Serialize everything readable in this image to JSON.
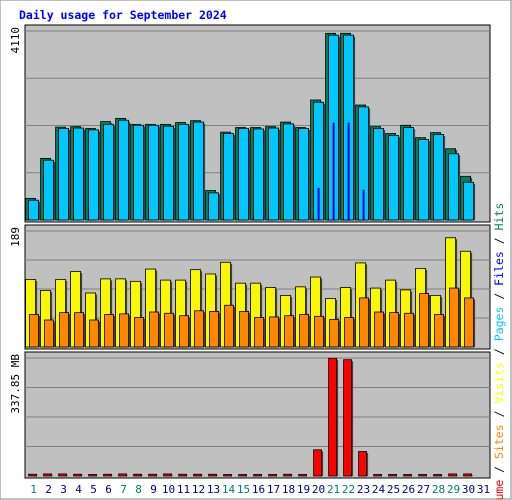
{
  "chart_data": {
    "type": "bar",
    "title": "Daily usage for September 2024",
    "x": [
      "1",
      "2",
      "3",
      "4",
      "5",
      "6",
      "7",
      "8",
      "9",
      "10",
      "11",
      "12",
      "13",
      "14",
      "15",
      "16",
      "17",
      "18",
      "19",
      "20",
      "21",
      "22",
      "23",
      "24",
      "25",
      "26",
      "27",
      "28",
      "29",
      "30",
      "31"
    ],
    "weekend_days": [
      "1",
      "7",
      "8",
      "14",
      "15",
      "21",
      "22",
      "28",
      "29"
    ],
    "panels": [
      {
        "name": "hits-pages",
        "max_label": "4110",
        "ymax": 4110,
        "series": [
          {
            "name": "Hits",
            "color": "#00805c",
            "values": [
              470,
              1340,
              2020,
              2030,
              1990,
              2140,
              2210,
              2080,
              2080,
              2080,
              2120,
              2160,
              640,
              1910,
              2010,
              2010,
              2030,
              2130,
              2010,
              2610,
              4060,
              4060,
              2500,
              2030,
              1880,
              2060,
              1790,
              1900,
              1550,
              950,
              null
            ]
          },
          {
            "name": "Pages",
            "color": "#00c8ff",
            "values": [
              430,
              1300,
              1990,
              2000,
              1960,
              2080,
              2170,
              2060,
              2060,
              2040,
              2080,
              2130,
              590,
              1880,
              1990,
              1980,
              2000,
              2090,
              1990,
              2560,
              4020,
              4020,
              2460,
              1990,
              1840,
              2010,
              1750,
              1860,
              1440,
              820,
              null
            ]
          },
          {
            "name": "Files",
            "color": "#0000e0",
            "values": [
              0,
              0,
              0,
              0,
              0,
              0,
              0,
              0,
              0,
              0,
              0,
              0,
              0,
              0,
              0,
              0,
              0,
              0,
              0,
              700,
              2120,
              2120,
              660,
              0,
              0,
              0,
              0,
              0,
              0,
              0,
              null
            ]
          }
        ]
      },
      {
        "name": "visits-sites",
        "max_label": "189",
        "ymax": 189,
        "series": [
          {
            "name": "Visits",
            "color": "#f8f800",
            "values": [
              110,
              92,
              110,
              123,
              88,
              111,
              111,
              107,
              127,
              109,
              109,
              126,
              119,
              138,
              104,
              104,
              97,
              84,
              98,
              114,
              79,
              97,
              137,
              96,
              109,
              93,
              128,
              84,
              178,
              156,
              null
            ]
          },
          {
            "name": "Sites",
            "color": "#ff8800",
            "values": [
              53,
              44,
              56,
              56,
              44,
              53,
              54,
              48,
              57,
              55,
              51,
              59,
              58,
              68,
              58,
              48,
              49,
              51,
              53,
              50,
              45,
              48,
              80,
              57,
              56,
              55,
              87,
              53,
              96,
              80,
              null
            ]
          }
        ]
      },
      {
        "name": "volume",
        "max_label": "337.85 MB",
        "ymax": 337.85,
        "series": [
          {
            "name": "Volume",
            "color": "#ff0000",
            "values": [
              5,
              6,
              6,
              5,
              4,
              5,
              6,
              5,
              5,
              6,
              5,
              5,
              5,
              4,
              4,
              4,
              4,
              5,
              4,
              75,
              337,
              333,
              70,
              4,
              4,
              4,
              4,
              4,
              6,
              6,
              null
            ]
          }
        ]
      }
    ],
    "legend": [
      {
        "text": "Volume",
        "color": "#ff0000"
      },
      {
        "text": "Sites",
        "color": "#ff8800"
      },
      {
        "text": "Visits",
        "color": "#ffff00"
      },
      {
        "text": "Pages",
        "color": "#00c8ff"
      },
      {
        "text": "Files",
        "color": "#0000ff"
      },
      {
        "text": "Hits",
        "color": "#00805c"
      }
    ],
    "legend_separator": "/",
    "colors": {
      "background": "#ffffff",
      "plot_background": "#c0c0c0",
      "gridline": "#808080",
      "title": "#0000ff",
      "axis_text": "#000000",
      "weekday_text": "#000080",
      "weekend_text": "#00805c",
      "legend_separator": "#000000"
    }
  }
}
